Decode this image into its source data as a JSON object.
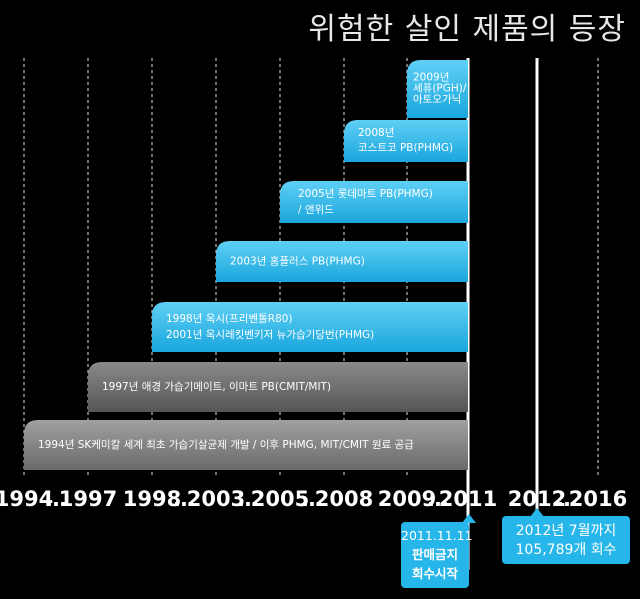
{
  "title": "위험한 살인 제품의 등장",
  "chart_data": {
    "type": "timeline",
    "title": "위험한 살인 제품의 등장",
    "axis_labels": [
      "1994",
      "…",
      "1997",
      "1998",
      "…",
      "2003",
      "…",
      "2005",
      "…",
      "2008",
      "2009",
      "…",
      "2011",
      "2012",
      "…",
      "2016"
    ],
    "events": [
      {
        "id": "e2009",
        "start_year": "2009",
        "end_year": "2011",
        "color": "#27b6ea",
        "lines": [
          "2009년",
          "세퓨(PGH)/",
          "아토오가닉"
        ]
      },
      {
        "id": "e2008",
        "start_year": "2008",
        "end_year": "2011",
        "color": "#27b6ea",
        "lines": [
          "2008년",
          "코스트코 PB(PHMG)"
        ]
      },
      {
        "id": "e2005",
        "start_year": "2005",
        "end_year": "2011",
        "color": "#27b6ea",
        "lines": [
          "2005년  롯데마트 PB(PHMG)",
          "/ 앤위드"
        ]
      },
      {
        "id": "e2003",
        "start_year": "2003",
        "end_year": "2011",
        "color": "#27b6ea",
        "lines": [
          "2003년   홈플러스 PB(PHMG)"
        ]
      },
      {
        "id": "e1998",
        "start_year": "1998",
        "end_year": "2011",
        "color": "#27b6ea",
        "lines": [
          "1998년   옥시(프리벤톨R80)",
          "2001년  옥시레킷벤키저 뉴가습기당번(PHMG)"
        ]
      },
      {
        "id": "e1997",
        "start_year": "1997",
        "end_year": "2011",
        "color": "#6f6f6f",
        "lines": [
          "1997년   애경 가습기메이트, 이마트 PB(CMIT/MIT)"
        ]
      },
      {
        "id": "e1994",
        "start_year": "1994",
        "end_year": "2011",
        "color": "#8a8a8a",
        "lines": [
          "1994년   SK케미칼 세계 최초 가습기살균제 개발 / 이후 PHMG, MIT/CMIT 원료 공급"
        ]
      }
    ],
    "markers": [
      {
        "year": "2011",
        "lines": [
          "2011.11.11",
          "판매금지",
          "회수시작"
        ]
      },
      {
        "year": "2012",
        "lines": [
          "2012년 7월까지",
          "105,789개 회수"
        ]
      }
    ],
    "colors": {
      "accent": "#27b6ea",
      "gray": "#7a7a7a",
      "background": "#000000"
    }
  }
}
